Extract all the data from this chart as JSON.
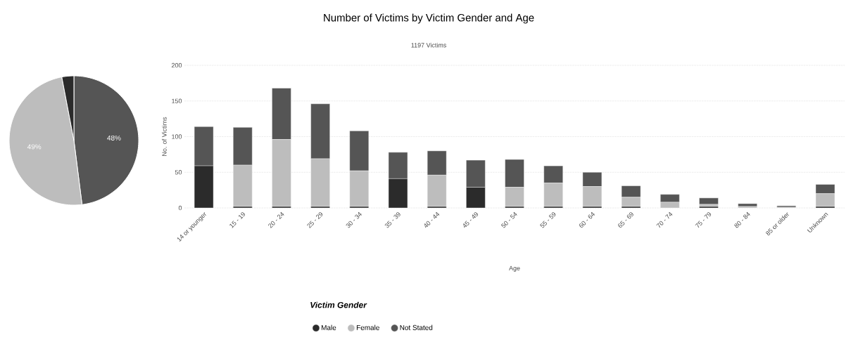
{
  "chart_data": [
    {
      "type": "pie",
      "categories": [
        null,
        null,
        null
      ],
      "values": [
        48,
        49,
        3
      ],
      "colors": [
        "#555555",
        "#bdbdbd",
        "#2b2b2b"
      ],
      "value_labels": [
        "48%",
        "49%",
        null
      ]
    },
    {
      "type": "bar",
      "title": "Number of Victims by Victim Gender and Age",
      "subtitle": "1197 Victims",
      "xlabel": "Age",
      "ylabel": "No. of Victims",
      "legend_title": "Victim Gender",
      "categories": [
        "14 or younger",
        "15 - 19",
        "20 - 24",
        "25 - 29",
        "30 - 34",
        "35 - 39",
        "40 - 44",
        "45 - 49",
        "50 - 54",
        "55 - 59",
        "60 - 64",
        "65 - 69",
        "70 - 74",
        "75 - 79",
        "80 - 84",
        "85 or older",
        "Unknown"
      ],
      "series": [
        {
          "name": "Male",
          "color": "#2b2b2b",
          "values": [
            59,
            2,
            2,
            2,
            2,
            41,
            2,
            29,
            2,
            2,
            2,
            2,
            0,
            2,
            0,
            0,
            2
          ]
        },
        {
          "name": "Female",
          "color": "#bdbdbd",
          "values": [
            0,
            58,
            94,
            67,
            50,
            0,
            44,
            0,
            27,
            33,
            28,
            13,
            8,
            3,
            2,
            1,
            18
          ]
        },
        {
          "name": "Not Stated",
          "color": "#555555",
          "values": [
            55,
            53,
            72,
            77,
            56,
            37,
            34,
            38,
            39,
            24,
            20,
            16,
            11,
            9,
            4,
            2,
            13
          ]
        }
      ],
      "stacked": true,
      "ylim": [
        0,
        200
      ],
      "yticks": [
        0,
        50,
        100,
        150,
        200
      ],
      "grid": "y",
      "legend": "bottom"
    }
  ]
}
